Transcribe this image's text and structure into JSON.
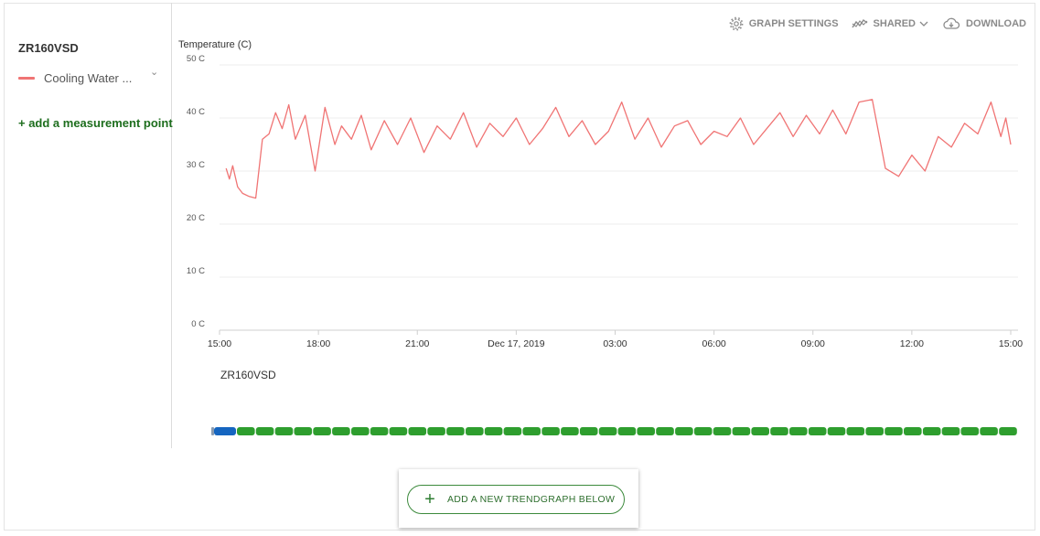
{
  "sidebar": {
    "asset_name": "ZR160VSD",
    "measurement_point": {
      "label": "Cooling Water ...",
      "color": "#f07474",
      "chevron": "chevron-down-icon"
    },
    "add_measurement_label": "+ add a measurement point",
    "accent_color": "#1e6e1e"
  },
  "toolbar": {
    "graph_settings": {
      "label": "GRAPH SETTINGS",
      "icon": "gear-icon"
    },
    "shared": {
      "label": "SHARED",
      "icon": "trend-icon"
    },
    "download": {
      "label": "DOWNLOAD",
      "icon": "cloud-download-icon"
    }
  },
  "chart_data": {
    "type": "line",
    "title": "",
    "ylabel": "Temperature (C)",
    "xlabel": "",
    "ylim": [
      0,
      50
    ],
    "y_ticks": [
      "0 C",
      "10 C",
      "20 C",
      "30 C",
      "40 C",
      "50 C"
    ],
    "x_ticks": [
      "15:00",
      "18:00",
      "21:00",
      "Dec 17, 2019",
      "03:00",
      "06:00",
      "09:00",
      "12:00",
      "15:00"
    ],
    "x_range_hours": [
      0,
      24
    ],
    "grid": true,
    "series": [
      {
        "name": "Cooling Water ...",
        "color": "#f07474",
        "x": [
          0.2,
          0.3,
          0.4,
          0.55,
          0.7,
          0.9,
          1.1,
          1.3,
          1.5,
          1.7,
          1.9,
          2.1,
          2.3,
          2.6,
          2.9,
          3.2,
          3.5,
          3.7,
          4.0,
          4.3,
          4.6,
          5.0,
          5.4,
          5.8,
          6.2,
          6.6,
          7.0,
          7.4,
          7.8,
          8.2,
          8.6,
          9.0,
          9.4,
          9.8,
          10.2,
          10.6,
          11.0,
          11.4,
          11.8,
          12.2,
          12.6,
          13.0,
          13.4,
          13.8,
          14.2,
          14.6,
          15.0,
          15.4,
          15.8,
          16.2,
          16.6,
          17.0,
          17.4,
          17.8,
          18.2,
          18.6,
          19.0,
          19.4,
          19.8,
          20.2,
          20.6,
          21.0,
          21.4,
          21.8,
          22.2,
          22.6,
          23.0,
          23.4,
          23.7,
          23.85,
          24.0
        ],
        "y": [
          30.5,
          28.5,
          31.0,
          27.0,
          25.8,
          25.2,
          24.9,
          36.0,
          37.0,
          41.0,
          38.0,
          42.5,
          36.0,
          40.5,
          30.0,
          42.0,
          35.0,
          38.5,
          36.0,
          40.5,
          34.0,
          39.5,
          35.0,
          40.0,
          33.5,
          38.5,
          36.0,
          41.0,
          34.5,
          39.0,
          36.5,
          40.0,
          35.0,
          38.0,
          42.0,
          36.5,
          39.5,
          35.0,
          37.5,
          43.0,
          36.0,
          40.0,
          34.5,
          38.5,
          39.5,
          35.0,
          37.5,
          36.5,
          40.0,
          35.0,
          38.0,
          41.0,
          36.5,
          40.5,
          37.0,
          41.5,
          37.0,
          43.0,
          43.5,
          30.5,
          29.0,
          33.0,
          30.0,
          36.5,
          34.5,
          39.0,
          37.0,
          43.0,
          36.5,
          40.0,
          35.0
        ]
      }
    ]
  },
  "status_bar": {
    "title": "ZR160VSD",
    "colors": {
      "running": "#2e9e2e",
      "selected": "#1565c0",
      "stub": "#8a9bb0"
    },
    "segments": 41
  },
  "add_graph": {
    "label": "ADD A NEW TRENDGRAPH BELOW",
    "icon": "plus-icon"
  }
}
